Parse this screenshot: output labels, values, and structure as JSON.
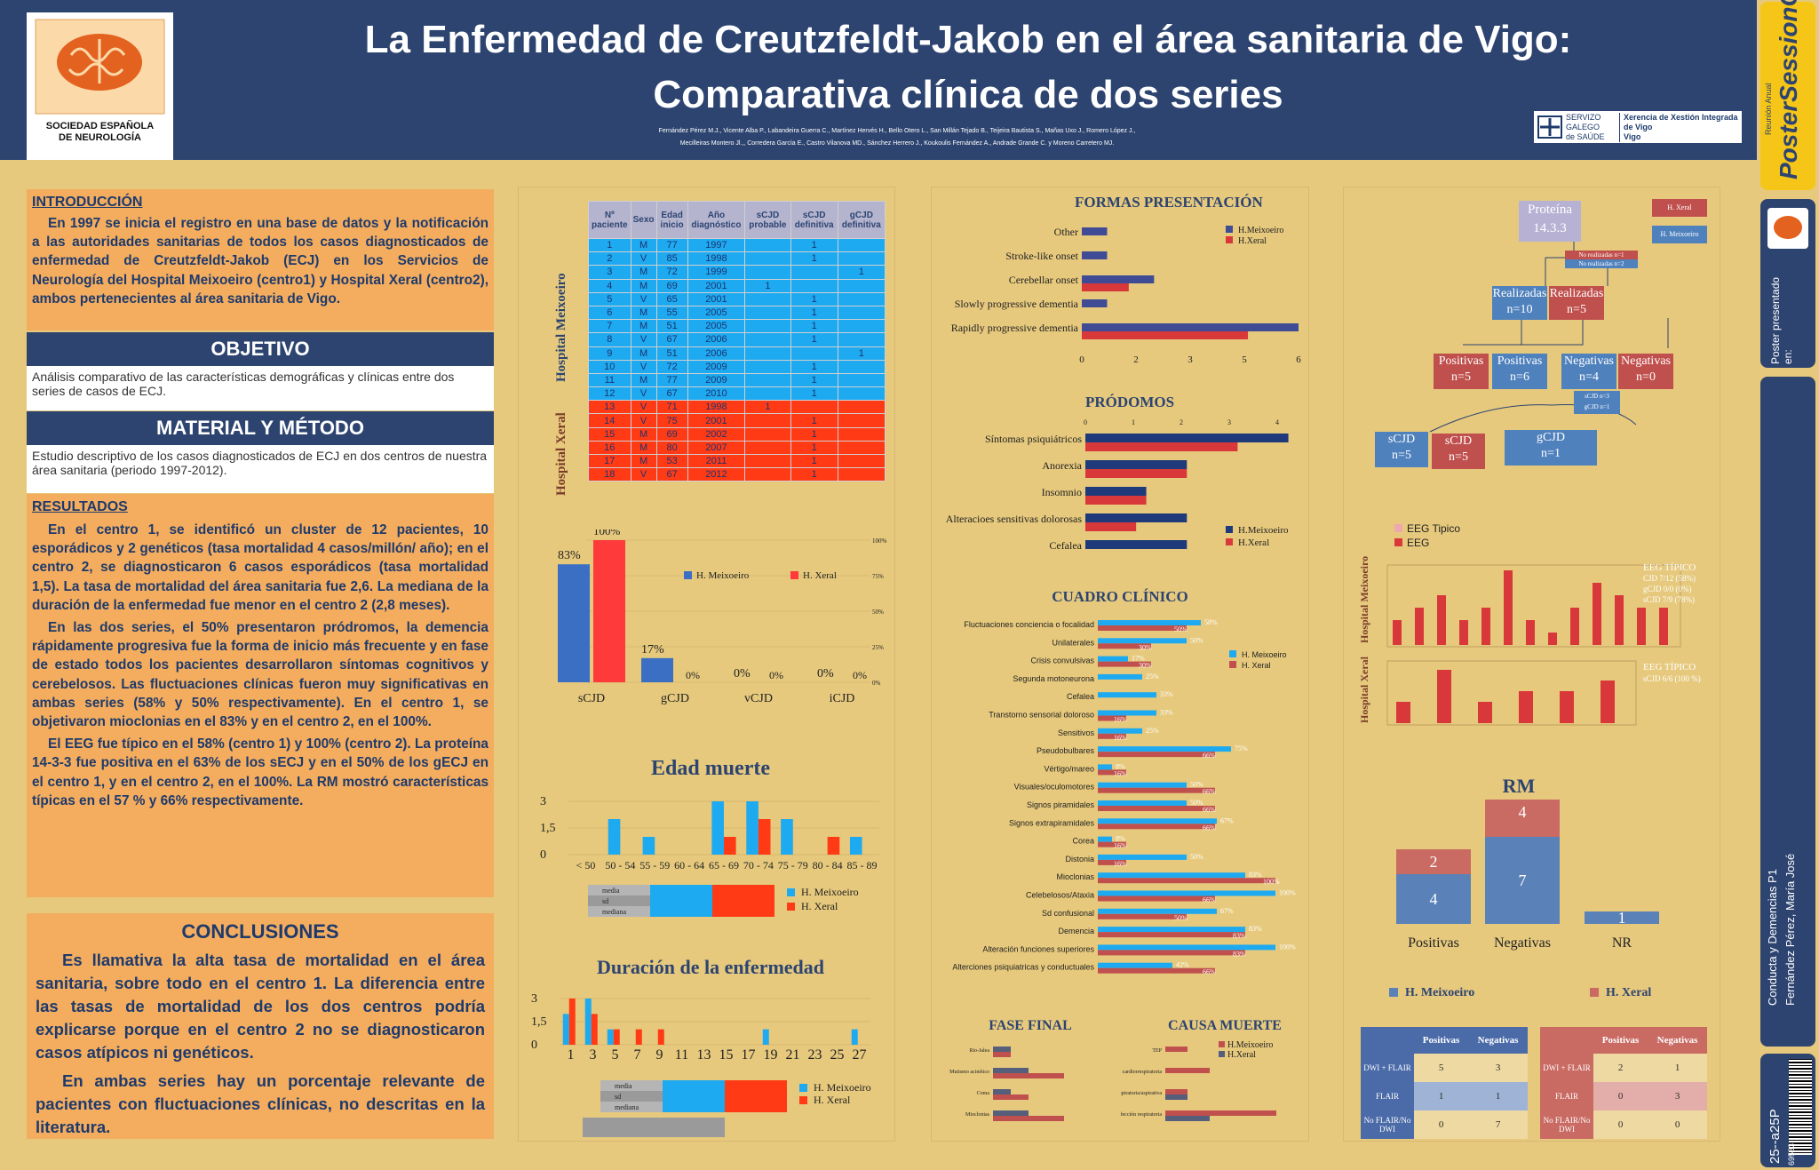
{
  "header": {
    "title_line1": "La Enfermedad de Creutzfeldt-Jakob en el área sanitaria de Vigo:",
    "title_line2": "Comparativa clínica de dos series",
    "authors_line1": "Fernández Pérez M.J., Vicente Alba P., Labandeira Guerra C., Martínez Hervés H., Bello Otero L., San Millán Tejado B., Teijeira Bautista S., Mañas Uxo J., Romero López J.,",
    "authors_line2": "Mecilleiras Montero Jl.,, Corredera García E., Castro Vilanova MD., Sánchez Herrero J., Koukoulis Fernández A., Andrade Grande C. y  Moreno Carretero MJ.",
    "logo_text_line1": "SOCIEDAD ESPAÑOLA",
    "logo_text_line2": "DE NEUROLOGÍA",
    "xunta_l1": "SERVIZO",
    "xunta_l2": "GALEGO",
    "xunta_l3": "de SAÚDE",
    "xunta_r1": "Xerencia de Xestión Integrada",
    "xunta_r2": "de Vigo",
    "xunta_r3": "Vigo"
  },
  "sidebar": {
    "brand": "PosterSessionOnline",
    "brand_sub": "Reunión Anual",
    "presented": "Poster presentado en:",
    "category": "Conducta y Demencias P1",
    "author": "Fernández Pérez, María José",
    "code": "25--a25P",
    "barcode_num": "69583"
  },
  "intro": {
    "title": "INTRODUCCIÓN",
    "text": "En 1997 se inicia el registro en una base de datos y la notificación a las autoridades sanitarias de todos los casos diagnosticados de enfermedad de Creutzfeldt-Jakob (ECJ) en los Servicios de Neurología del Hospital Meixoeiro (centro1) y Hospital Xeral (centro2), ambos pertenecientes al área sanitaria de Vigo."
  },
  "objetivo": {
    "title": "OBJETIVO",
    "text": "Análisis comparativo de las características demográficas y clínicas entre dos series de casos de ECJ."
  },
  "metodo": {
    "title": "MATERIAL Y MÉTODO",
    "text": "Estudio descriptivo de los casos diagnosticados de ECJ en dos centros de nuestra área sanitaria (periodo 1997-2012)."
  },
  "resultados": {
    "title": "RESULTADOS",
    "p1": "En el centro 1, se identificó un cluster de 12 pacientes, 10 esporádicos  y 2 genéticos  (tasa mortalidad  4 casos/millón/ año);  en el centro 2, se diagnosticaron 6 casos esporádicos (tasa mortalidad 1,5).   La tasa de mortalidad del área sanitaria fue 2,6. La mediana de la duración de la enfermedad fue menor en el centro 2 (2,8 meses).",
    "p2": "En las dos series, el 50% presentaron pródromos, la demencia rápidamente progresiva fue la forma de inicio más frecuente y en fase de estado todos los pacientes desarrollaron síntomas cognitivos y cerebelosos. Las fluctuaciones clínicas fueron muy significativas en ambas series (58% y 50% respectivamente).   En el centro 1,  se objetivaron mioclonias en el 83% y en el centro 2, en el 100%.",
    "p3": "El EEG fue típico en el 58% (centro 1) y 100% (centro 2). La proteína 14-3-3 fue positiva en el 63% de los sECJ y en el 50% de los gECJ en el centro 1, y en el centro 2, en el 100%. La RM mostró características típicas en el 57 % y 66% respectivamente."
  },
  "conclusiones": {
    "title": "CONCLUSIONES",
    "p1": "Es llamativa la alta tasa de mortalidad en el área sanitaria, sobre todo en el centro 1. La diferencia entre las tasas de mortalidad de los dos centros podría explicarse porque en el centro 2 no se diagnosticaron casos atípicos ni genéticos.",
    "p2": "En ambas series hay un porcentaje relevante de pacientes con fluctuaciones clínicas, no descritas en la literatura."
  },
  "patients": {
    "headers": [
      "Nº paciente",
      "Sexo",
      "Edad inicio",
      "Año diagnóstico",
      "sCJD probable",
      "sCJD definitiva",
      "gCJD definitiva"
    ],
    "group1": "Hospital Meixoeiro",
    "group2": "Hospital Xeral",
    "rows": [
      [
        "1",
        "M",
        "77",
        "1997",
        "",
        "1",
        ""
      ],
      [
        "2",
        "V",
        "85",
        "1998",
        "",
        "1",
        ""
      ],
      [
        "3",
        "M",
        "72",
        "1999",
        "",
        "",
        "1"
      ],
      [
        "4",
        "M",
        "69",
        "2001",
        "1",
        "",
        ""
      ],
      [
        "5",
        "V",
        "65",
        "2001",
        "",
        "1",
        ""
      ],
      [
        "6",
        "M",
        "55",
        "2005",
        "",
        "1",
        ""
      ],
      [
        "7",
        "M",
        "51",
        "2005",
        "",
        "1",
        ""
      ],
      [
        "8",
        "V",
        "67",
        "2006",
        "",
        "1",
        ""
      ],
      [
        "9",
        "M",
        "51",
        "2006",
        "",
        "",
        "1"
      ],
      [
        "10",
        "V",
        "72",
        "2009",
        "",
        "1",
        ""
      ],
      [
        "11",
        "M",
        "77",
        "2009",
        "",
        "1",
        ""
      ],
      [
        "12",
        "V",
        "67",
        "2010",
        "",
        "1",
        ""
      ],
      [
        "13",
        "V",
        "71",
        "1998",
        "1",
        "",
        ""
      ],
      [
        "14",
        "V",
        "75",
        "2001",
        "",
        "1",
        ""
      ],
      [
        "15",
        "M",
        "69",
        "2002",
        "",
        "1",
        ""
      ],
      [
        "16",
        "M",
        "80",
        "2007",
        "",
        "1",
        ""
      ],
      [
        "17",
        "M",
        "53",
        "2011",
        "",
        "1",
        ""
      ],
      [
        "18",
        "V",
        "67",
        "2012",
        "",
        "1",
        ""
      ]
    ]
  },
  "chart_data": [
    {
      "type": "bar",
      "categories": [
        "sCJD",
        "gCJD",
        "vCJD",
        "iCJD"
      ],
      "series": [
        {
          "name": "H. Meixoeiro",
          "values": [
            83,
            17,
            0,
            0
          ]
        },
        {
          "name": "H. Xeral",
          "values": [
            100,
            0,
            0,
            0
          ]
        }
      ],
      "labels_m": [
        "83%",
        "17%",
        "0%",
        "0%"
      ],
      "labels_x": [
        "100%",
        "0%",
        "0%",
        "0%"
      ],
      "yticks": [
        "100%",
        "75%",
        "50%",
        "25%",
        "0%"
      ],
      "ylim": [
        0,
        100
      ]
    },
    {
      "type": "bar",
      "title": "Edad  muerte",
      "categories": [
        "< 50",
        "50 - 54",
        "55 - 59",
        "60 - 64",
        "65 - 69",
        "70 - 74",
        "75 - 79",
        "80 - 84",
        "85 - 89"
      ],
      "series": [
        {
          "name": "H. Meixoeiro",
          "values": [
            0,
            2,
            1,
            0,
            3,
            3,
            2,
            0,
            1
          ]
        },
        {
          "name": "H. Xeral",
          "values": [
            0,
            0,
            0,
            0,
            1,
            2,
            0,
            1,
            0
          ]
        }
      ],
      "yticks": [
        "3",
        "1,5",
        "0"
      ],
      "ylim": [
        0,
        3
      ],
      "stats_rows": [
        "media",
        "sd",
        "mediana"
      ]
    },
    {
      "type": "bar",
      "title": "Duración de la enfermedad",
      "categories": [
        "1",
        "3",
        "5",
        "7",
        "9",
        "11",
        "13",
        "15",
        "17",
        "19",
        "21",
        "23",
        "25",
        "27"
      ],
      "series": [
        {
          "name": "H. Meixoeiro",
          "values": [
            2,
            3,
            1,
            0,
            0,
            0,
            0,
            0,
            0,
            1,
            0,
            0,
            0,
            1
          ]
        },
        {
          "name": "H. Xeral",
          "values": [
            3,
            2,
            1,
            1,
            1,
            0,
            0,
            0,
            0,
            0,
            0,
            0,
            0,
            0
          ]
        }
      ],
      "yticks": [
        "3",
        "1,5",
        "0"
      ],
      "ylim": [
        0,
        3
      ],
      "stats_rows": [
        "media",
        "sd",
        "mediana"
      ]
    },
    {
      "type": "bar",
      "title": "FORMAS PRESENTACIÓN",
      "categories": [
        "Other",
        "Stroke-like onset",
        "Cerebellar onset",
        "Slowly progressive dementia",
        "Rapidly progressive dementia"
      ],
      "series": [
        {
          "name": "H.Meixoeiro",
          "values": [
            0.7,
            0.7,
            2,
            0.7,
            6
          ]
        },
        {
          "name": "H.Xeral",
          "values": [
            0,
            0,
            1.3,
            0,
            4.6
          ]
        }
      ],
      "xticks": [
        "0",
        "2",
        "3",
        "5",
        "6"
      ],
      "xlim": [
        0,
        6
      ]
    },
    {
      "type": "bar",
      "title": "PRÓDOMOS",
      "categories": [
        "Síntomas psiquiátricos",
        "Anorexia",
        "Insomnio",
        "Alteracioes sensitivas dolorosas",
        "Cefalea"
      ],
      "series": [
        {
          "name": "H.Meixoeiro",
          "values": [
            4,
            2,
            1.2,
            2,
            2
          ]
        },
        {
          "name": "H.Xeral",
          "values": [
            3,
            2,
            1.2,
            1,
            0
          ]
        }
      ],
      "xticks": [
        "0",
        "1",
        "2",
        "3",
        "4"
      ],
      "xlim": [
        0,
        4.2
      ]
    },
    {
      "type": "bar",
      "title": "CUADRO CLÍNICO",
      "categories": [
        "Fluctuaciones conciencia o focalidad",
        "Unilaterales",
        "Crisis convulsivas",
        "Segunda motoneurona",
        "Cefalea",
        "Transtorno sensorial doloroso",
        "Sensitivos",
        "Pseudobulbares",
        "Vértigo/mareo",
        "Visuales/oculomotores",
        "Signos piramidales",
        "Signos extrapiramidales",
        "Corea",
        "Distonia",
        "Mioclonias",
        "Celebelosos/Ataxia",
        "Sd confusional",
        "Demencia",
        "Alteración funciones superiores",
        "Alterciones psiquiatricas y conductuales"
      ],
      "series": [
        {
          "name": "H. Meixoeiro",
          "values": [
            58,
            50,
            17,
            25,
            33,
            33,
            25,
            75,
            8,
            50,
            50,
            67,
            8,
            50,
            83,
            100,
            67,
            83,
            100,
            42
          ]
        },
        {
          "name": "H. Xeral",
          "values": [
            50,
            30,
            30,
            0,
            0,
            16,
            16,
            66,
            16,
            66,
            66,
            66,
            16,
            16,
            100,
            66,
            50,
            83,
            83,
            66
          ]
        }
      ],
      "labels_m": [
        "58%",
        "50%",
        "17%",
        "25%",
        "33%",
        "33%",
        "25%",
        "75%",
        "8%",
        "50%",
        "50%",
        "67%",
        "8%",
        "50%",
        "83%",
        "100%",
        "67%",
        "83%",
        "100%",
        "42%"
      ],
      "labels_x": [
        "50%",
        "30%",
        "30%",
        "",
        "",
        "16%",
        "16%",
        "66%",
        "16%",
        "66%",
        "66%",
        "66%",
        "16%",
        "16%",
        "100%",
        "66%",
        "50%",
        "83%",
        "83%",
        "66%"
      ],
      "xlim": [
        0,
        100
      ]
    },
    {
      "type": "bar",
      "title": "FASE FINAL",
      "categories": [
        "Rio-Jalea",
        "Mutismo acinético",
        "Coma",
        "Mioclonias"
      ],
      "series": [
        {
          "name": "H. Meixoeiro",
          "values": [
            1,
            2,
            1,
            2
          ]
        },
        {
          "name": "H. Xeral",
          "values": [
            1,
            4,
            2,
            4
          ]
        }
      ],
      "xlim": [
        0,
        6
      ]
    },
    {
      "type": "bar",
      "title": "CAUSA MUERTE",
      "categories": [
        "TEP",
        "Parada cardiorrespiratoria",
        "Infección respiratoria/aspirativa",
        "Infección respiratoria"
      ],
      "series": [
        {
          "name": "H.Meixoeiro",
          "values": [
            1,
            2,
            1,
            5
          ]
        },
        {
          "name": "H.Xeral",
          "values": [
            0,
            0,
            1,
            2
          ]
        }
      ],
      "xlim": [
        0,
        6
      ]
    },
    {
      "type": "bar",
      "title": "EEG",
      "legend": [
        "EEG Tipico",
        "EEG"
      ],
      "series": [
        {
          "name": "Hospital Meixoeiro",
          "values": [
            2,
            3,
            4,
            2,
            3,
            6,
            2,
            1,
            3,
            5,
            4,
            3,
            3
          ]
        },
        {
          "name": "Hospital Xeral",
          "values": [
            2,
            5,
            2,
            3,
            3,
            4
          ]
        }
      ],
      "notes_m": [
        "EEG TÍPICO",
        "CJD 7/12 (58%)",
        "gCJD 0/0 (0%)",
        "sCJD 7/9 (78%)"
      ],
      "notes_x": [
        "EEG TÍPICO",
        "sCJD  6/6 (100 %)"
      ]
    },
    {
      "type": "bar",
      "title": "RM",
      "categories": [
        "Positivas",
        "Negativas",
        "NR"
      ],
      "series": [
        {
          "name": "H. Meixoeiro",
          "values": [
            4,
            7,
            1
          ]
        },
        {
          "name": "H. Xeral",
          "values": [
            2,
            4,
            0
          ]
        }
      ],
      "labels": {
        "pos_m": "4",
        "pos_x": "2",
        "neg_m": "7",
        "neg_x": "4",
        "nr": "1"
      }
    }
  ],
  "proteina": {
    "root": "Proteína 14.3.3",
    "nr1": "No realizadas n=1",
    "nr2": "No realizadas n=2",
    "leg_x": "H. Xeral",
    "leg_m": "H. Meixoeiro",
    "real_m": "Realizadas",
    "real_m_n": "n=10",
    "real_x": "Realizadas",
    "real_x_n": "n=5",
    "pos_x": "Positivas",
    "pos_x_n": "n=5",
    "pos_m": "Positivas",
    "pos_m_n": "n=6",
    "neg_m": "Negativas",
    "neg_m_n": "n=4",
    "neg_x": "Negativas",
    "neg_x_n": "n=0",
    "small1": "sCJD n=3",
    "small2": "gCJD n=1",
    "scjd_m": "sCJD",
    "scjd_m_n": "n=5",
    "scjd_x": "sCJD",
    "scjd_x_n": "n=5",
    "gcjd": "gCJD",
    "gcjd_n": "n=1"
  },
  "rm_tables": {
    "headers": [
      "Positivas",
      "Negativas"
    ],
    "rows": [
      "DWI + FLAIR",
      "FLAIR",
      "No FLAIR/No DWI"
    ],
    "meix": [
      [
        "5",
        "3"
      ],
      [
        "1",
        "1"
      ],
      [
        "0",
        "7"
      ]
    ],
    "xeral": [
      [
        "2",
        "1"
      ],
      [
        "0",
        "3"
      ],
      [
        "0",
        "0"
      ]
    ],
    "legend_m": "H. Meixoeiro",
    "legend_x": "H. Xeral"
  },
  "colors": {
    "meixoeiro": "#1eaaf0",
    "xeral": "#ff3a15",
    "navy": "#2d4470",
    "orange": "#f4ad5e"
  }
}
